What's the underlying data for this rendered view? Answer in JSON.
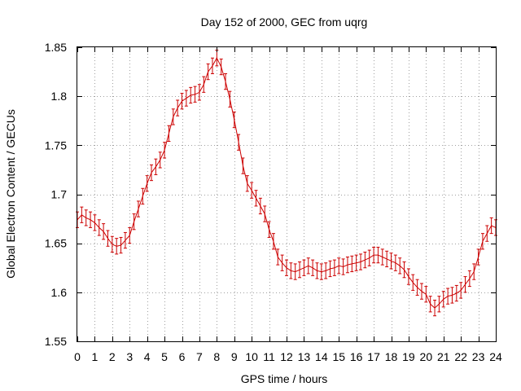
{
  "chart_data": {
    "type": "line",
    "title": "Day 152 of 2000, GEC from uqrg",
    "xlabel": "GPS time / hours",
    "ylabel": "Global Electron Content / GECUs",
    "xlim": [
      0,
      24
    ],
    "ylim": [
      1.55,
      1.85
    ],
    "x_ticks": [
      "0",
      "1",
      "2",
      "3",
      "4",
      "5",
      "6",
      "7",
      "8",
      "9",
      "10",
      "11",
      "12",
      "13",
      "14",
      "15",
      "16",
      "17",
      "18",
      "19",
      "20",
      "21",
      "22",
      "23",
      "24"
    ],
    "y_ticks": [
      "1.55",
      "1.6",
      "1.65",
      "1.7",
      "1.75",
      "1.8",
      "1.85"
    ],
    "grid": true,
    "error_bars": true,
    "error_half_width": 0.008,
    "series_color": "#cc0000",
    "x": [
      0.0,
      0.25,
      0.5,
      0.75,
      1.0,
      1.25,
      1.5,
      1.75,
      2.0,
      2.25,
      2.5,
      2.75,
      3.0,
      3.25,
      3.5,
      3.75,
      4.0,
      4.25,
      4.5,
      4.75,
      5.0,
      5.25,
      5.5,
      5.75,
      6.0,
      6.25,
      6.5,
      6.75,
      7.0,
      7.25,
      7.5,
      7.75,
      8.0,
      8.25,
      8.5,
      8.75,
      9.0,
      9.25,
      9.5,
      9.75,
      10.0,
      10.25,
      10.5,
      10.75,
      11.0,
      11.25,
      11.5,
      11.75,
      12.0,
      12.25,
      12.5,
      12.75,
      13.0,
      13.25,
      13.5,
      13.75,
      14.0,
      14.25,
      14.5,
      14.75,
      15.0,
      15.25,
      15.5,
      15.75,
      16.0,
      16.25,
      16.5,
      16.75,
      17.0,
      17.25,
      17.5,
      17.75,
      18.0,
      18.25,
      18.5,
      18.75,
      19.0,
      19.25,
      19.5,
      19.75,
      20.0,
      20.25,
      20.5,
      20.75,
      21.0,
      21.25,
      21.5,
      21.75,
      22.0,
      22.25,
      22.5,
      22.75,
      23.0,
      23.25,
      23.5,
      23.75,
      24.0
    ],
    "y": [
      1.674,
      1.679,
      1.676,
      1.674,
      1.671,
      1.666,
      1.662,
      1.655,
      1.649,
      1.647,
      1.648,
      1.653,
      1.658,
      1.672,
      1.685,
      1.698,
      1.711,
      1.722,
      1.728,
      1.735,
      1.745,
      1.762,
      1.779,
      1.788,
      1.795,
      1.798,
      1.801,
      1.802,
      1.804,
      1.812,
      1.825,
      1.831,
      1.839,
      1.83,
      1.815,
      1.797,
      1.776,
      1.753,
      1.729,
      1.711,
      1.704,
      1.696,
      1.688,
      1.68,
      1.664,
      1.652,
      1.636,
      1.63,
      1.625,
      1.622,
      1.621,
      1.623,
      1.625,
      1.627,
      1.625,
      1.622,
      1.621,
      1.622,
      1.624,
      1.625,
      1.627,
      1.626,
      1.628,
      1.629,
      1.63,
      1.631,
      1.633,
      1.635,
      1.638,
      1.638,
      1.636,
      1.634,
      1.632,
      1.63,
      1.627,
      1.623,
      1.616,
      1.61,
      1.605,
      1.601,
      1.598,
      1.588,
      1.584,
      1.588,
      1.593,
      1.596,
      1.597,
      1.599,
      1.602,
      1.608,
      1.614,
      1.621,
      1.636,
      1.652,
      1.66,
      1.668,
      1.666
    ]
  }
}
